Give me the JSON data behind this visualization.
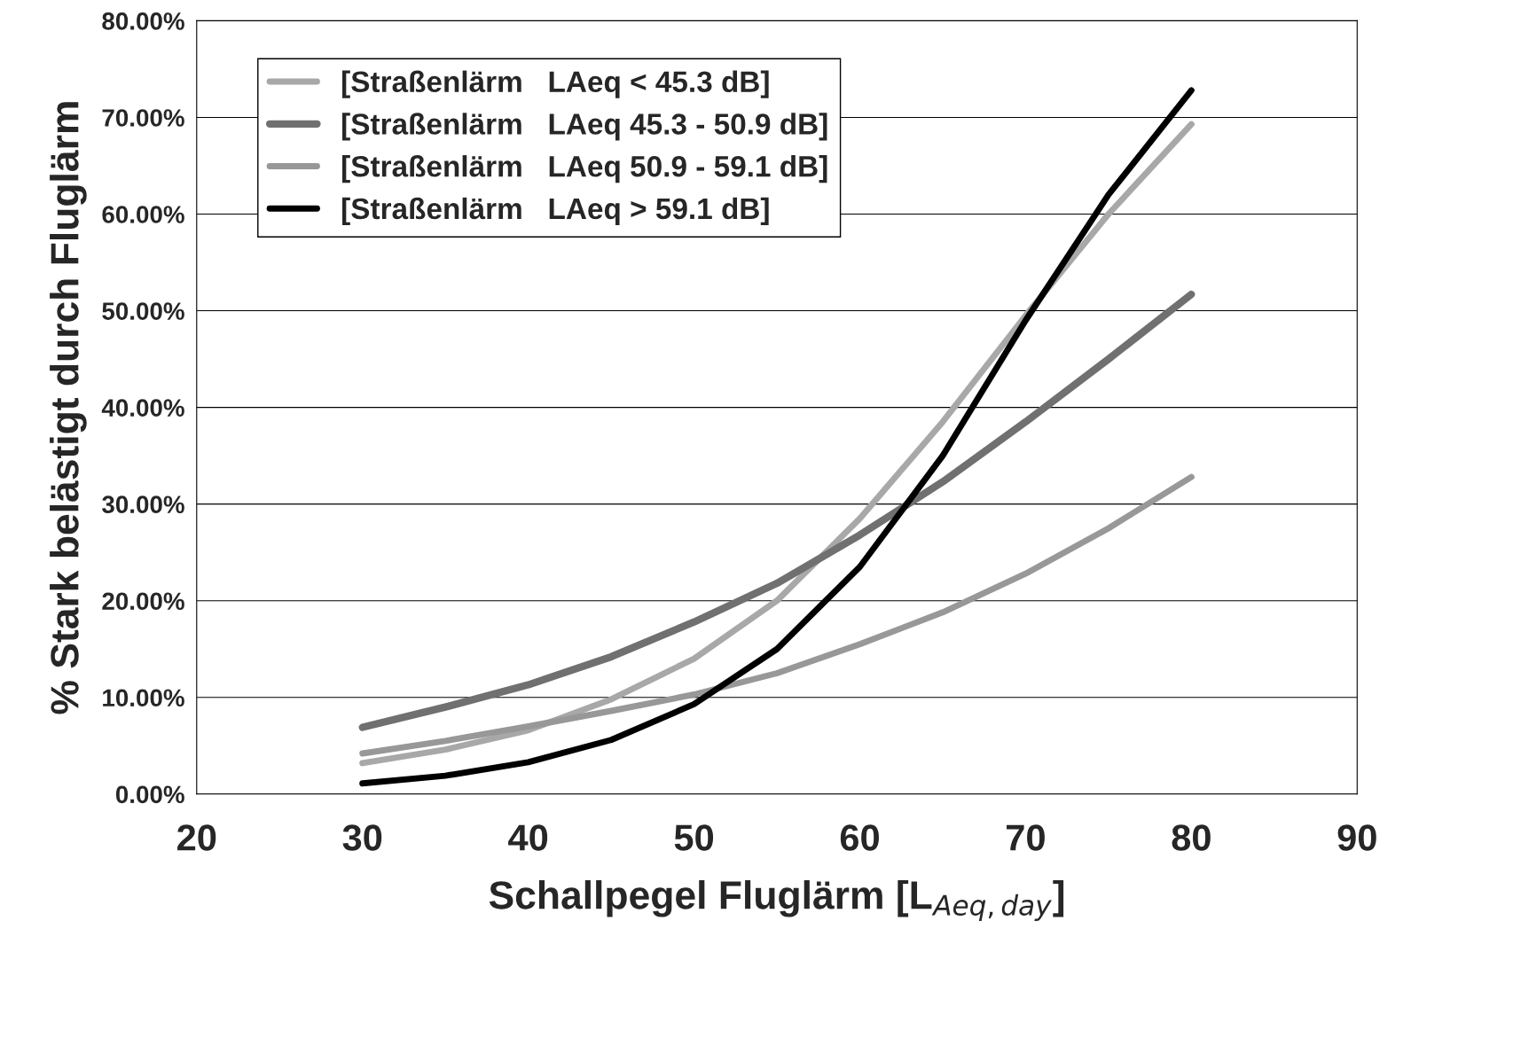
{
  "chart_data": {
    "type": "line",
    "xlabel": "Schallpegel Fluglärm [L$_{Aeq,day}$]",
    "ylabel": "% Stark belästigt durch Fluglärm",
    "x": [
      30,
      35,
      40,
      45,
      50,
      55,
      60,
      65,
      70,
      75,
      80
    ],
    "series": [
      {
        "name": "[Straßenlärm   LAeq < 45.3 dB]",
        "color": "#a8a8a8",
        "values": [
          3.2,
          4.6,
          6.6,
          9.8,
          14,
          20,
          28.5,
          38.5,
          49.5,
          60,
          69.3
        ]
      },
      {
        "name": "[Straßenlärm   LAeq 45.3 - 50.9 dB]",
        "color": "#707070",
        "values": [
          6.9,
          9,
          11.3,
          14.2,
          17.8,
          21.8,
          26.8,
          32.3,
          38.5,
          45,
          51.7
        ]
      },
      {
        "name": "[Straßenlärm   LAeq 50.9 - 59.1 dB]",
        "color": "#989898",
        "values": [
          4.2,
          5.5,
          7,
          8.6,
          10.3,
          12.5,
          15.5,
          18.8,
          22.8,
          27.5,
          32.8
        ]
      },
      {
        "name": "[Straßenlärm   LAeq > 59.1 dB]",
        "color": "#000000",
        "values": [
          1.1,
          1.9,
          3.3,
          5.6,
          9.3,
          15,
          23.5,
          35,
          49,
          62,
          72.8
        ]
      }
    ],
    "xlim": [
      20,
      90
    ],
    "xticks": [
      20,
      30,
      40,
      50,
      60,
      70,
      80,
      90
    ],
    "ylim": [
      0,
      80
    ],
    "yticks": [
      {
        "value": 0,
        "label": "0.00%"
      },
      {
        "value": 10,
        "label": "10.00%"
      },
      {
        "value": 20,
        "label": "20.00%"
      },
      {
        "value": 30,
        "label": "30.00%"
      },
      {
        "value": 40,
        "label": "40.00%"
      },
      {
        "value": 50,
        "label": "50.00%"
      },
      {
        "value": 60,
        "label": "60.00%"
      },
      {
        "value": 70,
        "label": "70.00%"
      },
      {
        "value": 80,
        "label": "80.00%"
      }
    ],
    "grid": "y",
    "legend": "top left",
    "marker": "none",
    "line_style": "solid"
  }
}
